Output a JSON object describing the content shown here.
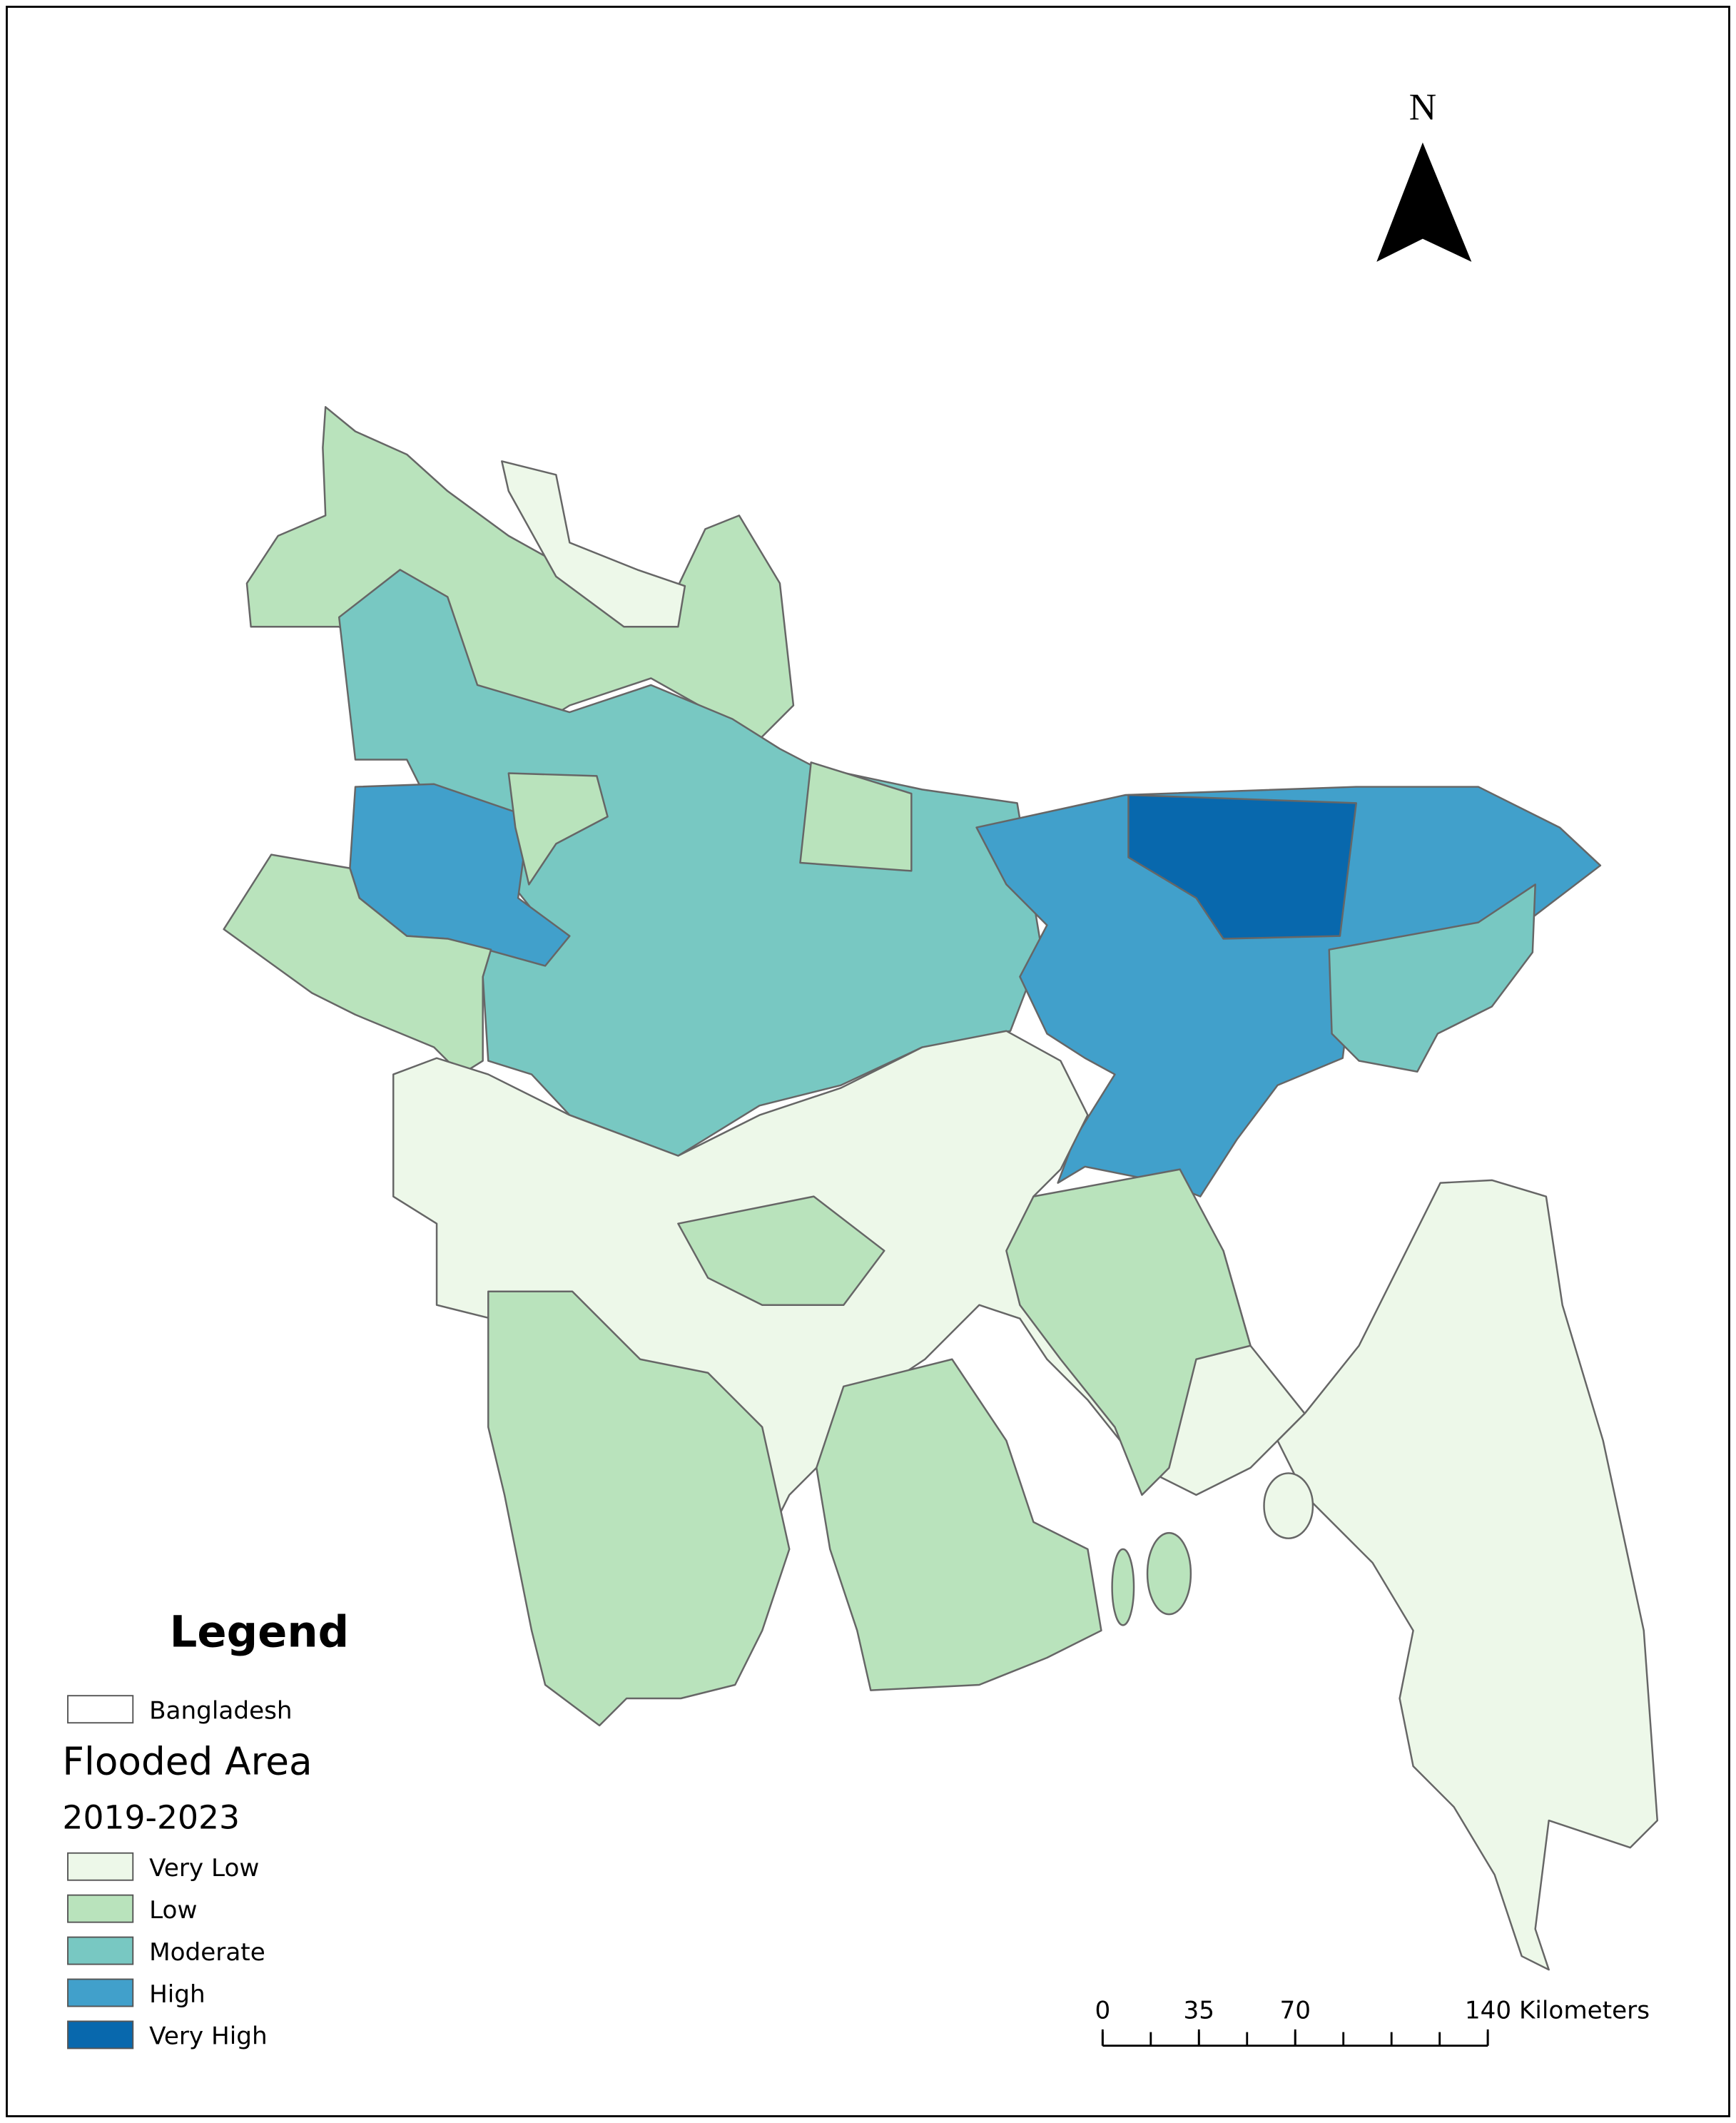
{
  "north_arrow": {
    "label": "N"
  },
  "legend": {
    "title": "Legend",
    "boundary": {
      "label": "Bangladesh"
    },
    "heading": "Flooded Area",
    "period": "2019-2023",
    "classes": [
      {
        "label": "Very Low",
        "color": "#edf8e9"
      },
      {
        "label": "Low",
        "color": "#b9e3bc"
      },
      {
        "label": "Moderate",
        "color": "#78c8c2"
      },
      {
        "label": "High",
        "color": "#41a0cb"
      },
      {
        "label": "Very High",
        "color": "#0868ad"
      }
    ]
  },
  "scale_bar": {
    "ticks": [
      0,
      35,
      70,
      {
        "value": 140,
        "label": "140 Kilometers"
      }
    ]
  }
}
